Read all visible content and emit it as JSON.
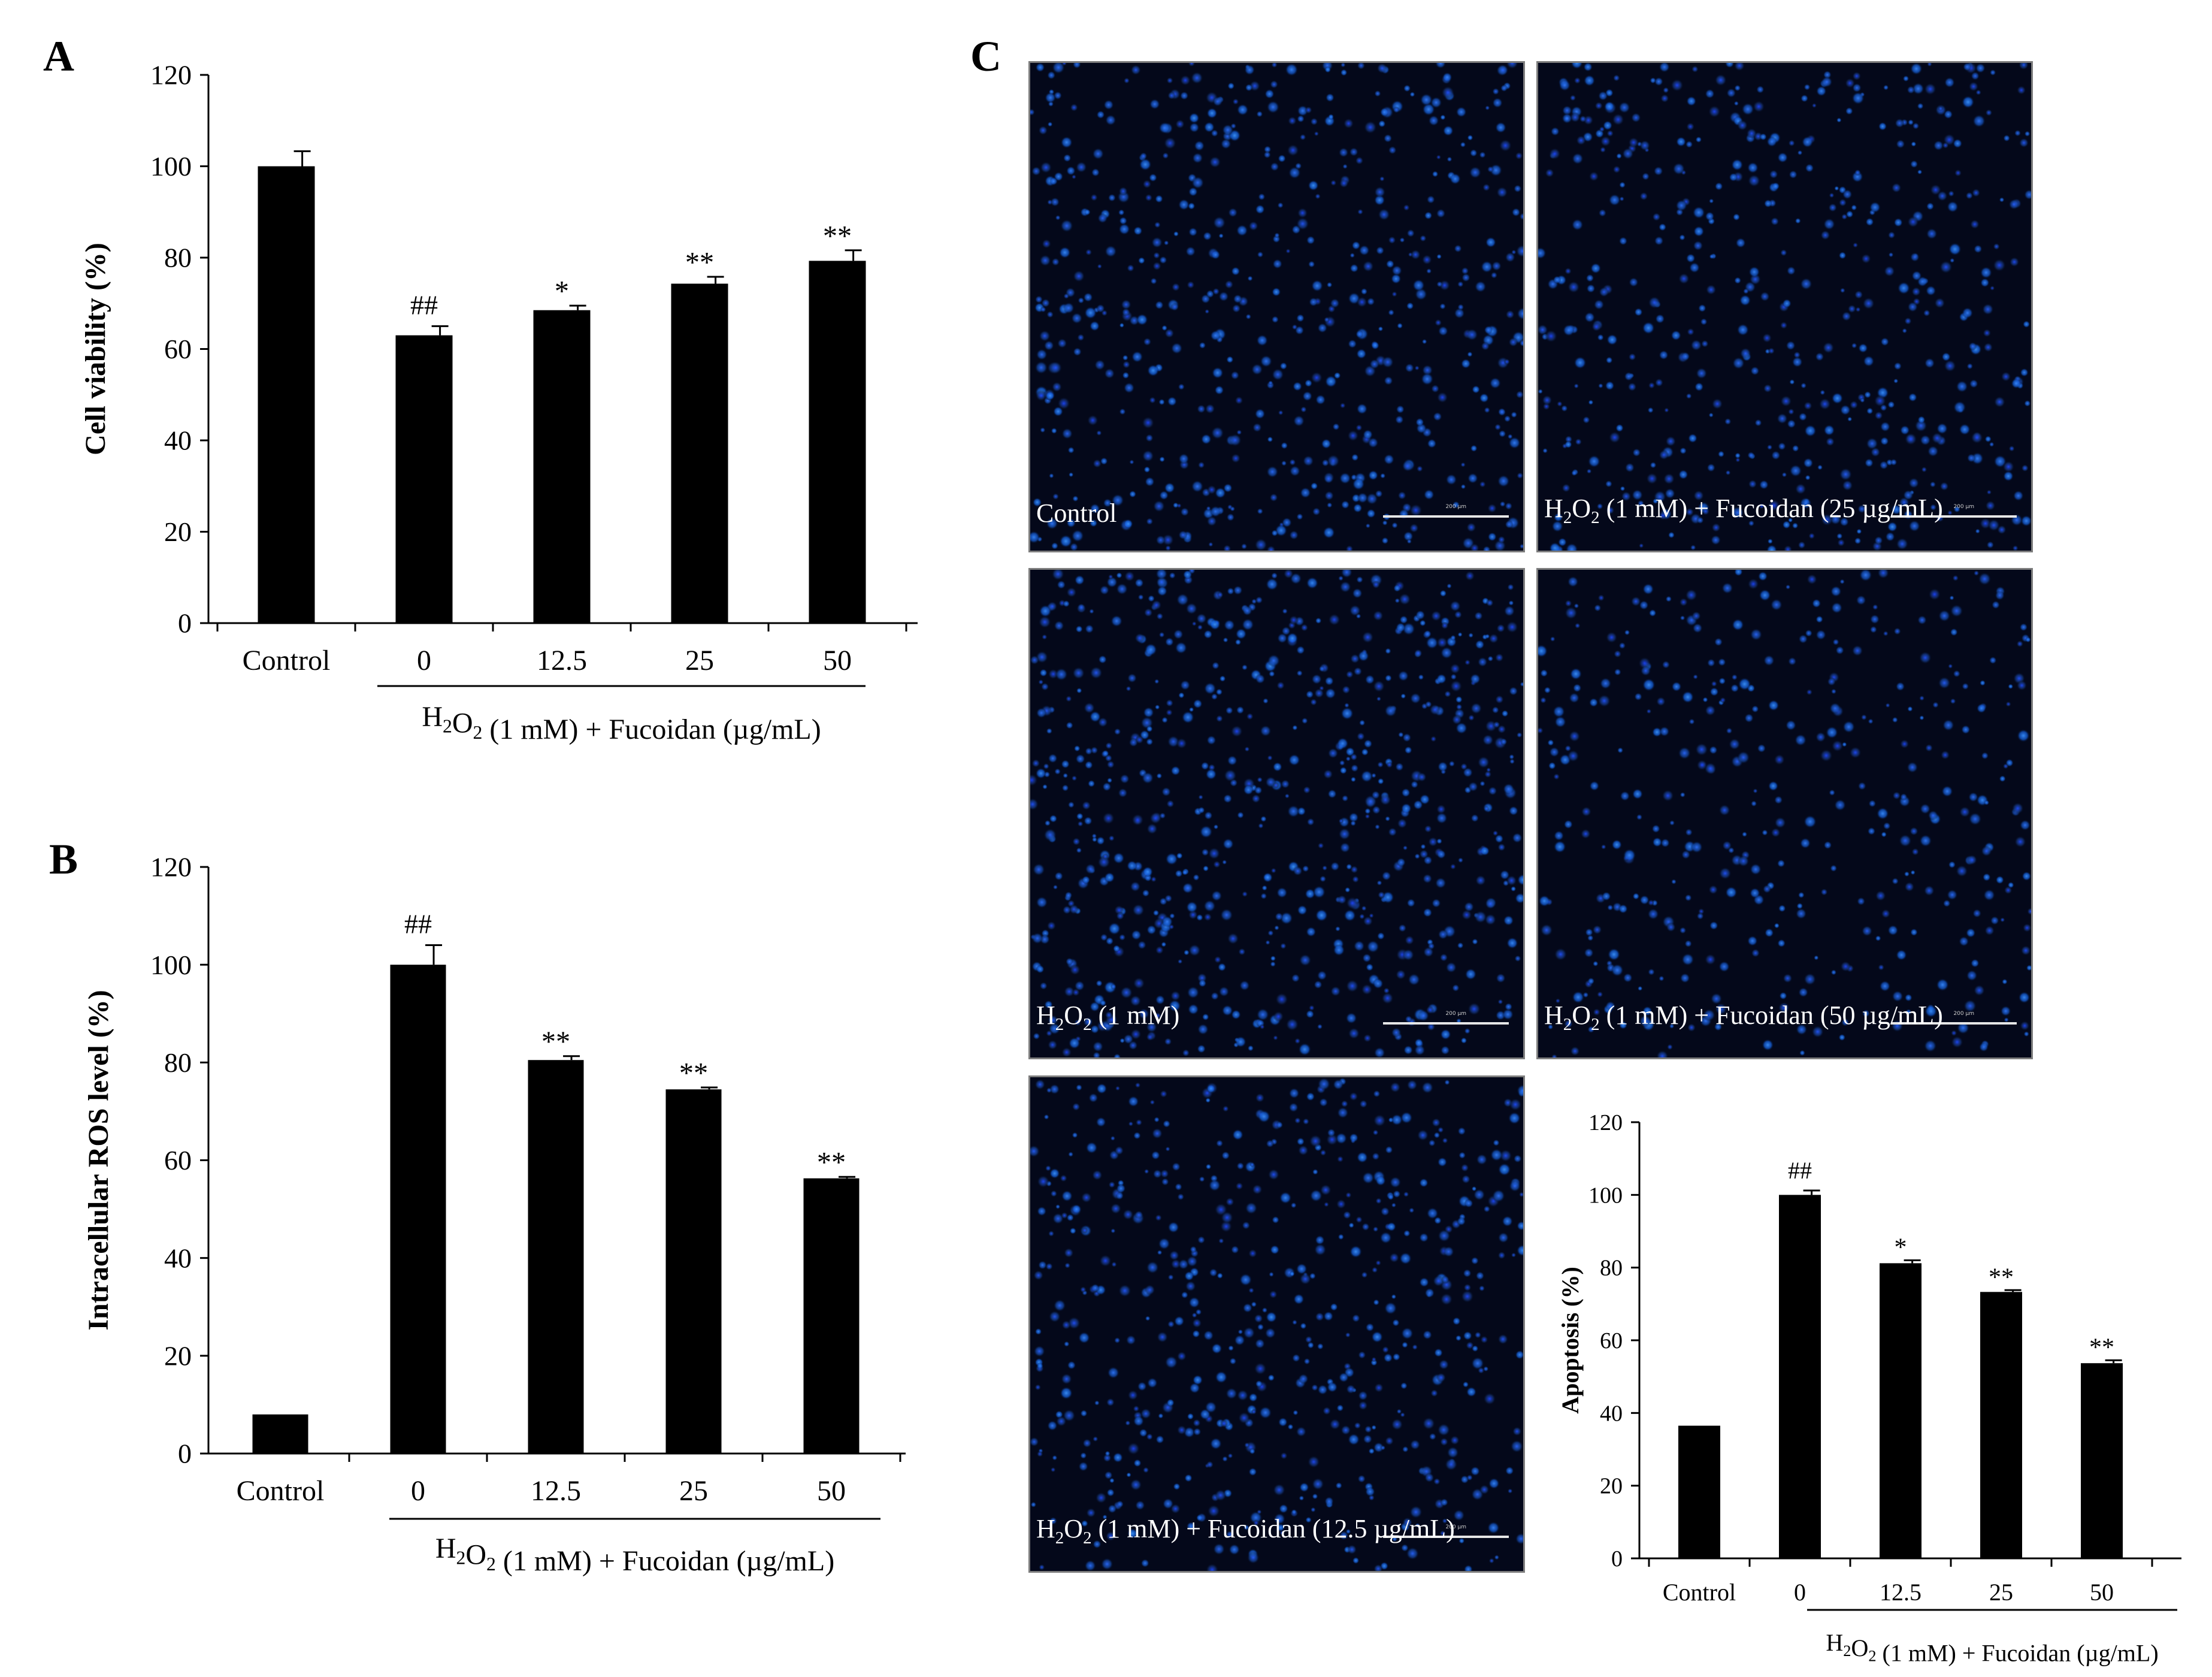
{
  "panel_labels": {
    "a": "A",
    "b": "B",
    "c": "C"
  },
  "colors": {
    "bar": "#000000",
    "axis": "#000000",
    "cell_nucleus": "#1a6cff",
    "micrograph_bg": "#04081a"
  },
  "chart_data": [
    {
      "id": "A",
      "type": "bar",
      "title": "",
      "ylabel": "Cell viability (%)",
      "xlabel": "",
      "group_label": "H2O2 (1 mM) + Fucoidan (µg/mL)",
      "categories": [
        "Control",
        "0",
        "12.5",
        "25",
        "50"
      ],
      "values": [
        100,
        63,
        68.5,
        74.3,
        79.3
      ],
      "errors": [
        3.3,
        2.0,
        1.0,
        1.5,
        2.3
      ],
      "significance": [
        "",
        "##",
        "*",
        "**",
        "**"
      ],
      "ylim": [
        0,
        120
      ],
      "yticks": [
        0,
        20,
        40,
        60,
        80,
        100,
        120
      ],
      "grid": false,
      "legend": "none"
    },
    {
      "id": "B",
      "type": "bar",
      "title": "",
      "ylabel": "Intracellular ROS level (%)",
      "xlabel": "",
      "group_label": "H2O2 (1 mM) + Fucoidan (µg/mL)",
      "categories": [
        "Control",
        "0",
        "12.5",
        "25",
        "50"
      ],
      "values": [
        8,
        100,
        80.5,
        74.5,
        56.3
      ],
      "errors": [
        0,
        4.0,
        0.8,
        0.4,
        0.3
      ],
      "significance": [
        "",
        "##",
        "**",
        "**",
        "**"
      ],
      "ylim": [
        0,
        120
      ],
      "yticks": [
        0,
        20,
        40,
        60,
        80,
        100,
        120
      ],
      "grid": false,
      "legend": "none"
    },
    {
      "id": "C-chart",
      "type": "bar",
      "title": "",
      "ylabel": "Apoptosis (%)",
      "xlabel": "",
      "group_label": "H2O2 (1 mM) + Fucoidan (µg/mL)",
      "categories": [
        "Control",
        "0",
        "12.5",
        "25",
        "50"
      ],
      "values": [
        36.5,
        100,
        81.2,
        73.3,
        53.7
      ],
      "errors": [
        0,
        1.2,
        0.8,
        0.5,
        0.8
      ],
      "significance": [
        "",
        "##",
        "*",
        "**",
        "**"
      ],
      "ylim": [
        0,
        120
      ],
      "yticks": [
        0,
        20,
        40,
        60,
        80,
        100,
        120
      ],
      "grid": false,
      "legend": "none"
    }
  ],
  "micrographs": [
    {
      "id": "control",
      "label": "Control",
      "scale_text": "200 µm",
      "seed": 11,
      "density": 620
    },
    {
      "id": "fuc25",
      "label": "H2O2 (1 mM) + Fucoidan (25 µg/mL)",
      "scale_text": "200 µm",
      "seed": 23,
      "density": 560
    },
    {
      "id": "h2o2",
      "label": "H2O2 (1 mM)",
      "scale_text": "200 µm",
      "seed": 37,
      "density": 760
    },
    {
      "id": "fuc50",
      "label": "H2O2 (1 mM) + Fucoidan (50  µg/mL)",
      "scale_text": "200 µm",
      "seed": 41,
      "density": 420
    },
    {
      "id": "fuc125",
      "label": "H2O2 (1 mM) + Fucoidan (12.5 µg/mL)",
      "scale_text": "200 µm",
      "seed": 53,
      "density": 600
    }
  ]
}
